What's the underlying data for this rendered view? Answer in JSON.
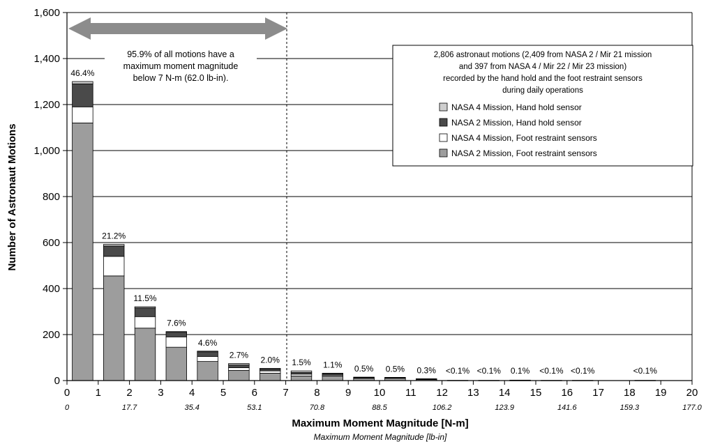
{
  "chart_data": {
    "type": "bar",
    "stacked": true,
    "ylabel": "Number of Astronaut Motions",
    "xlabel": "Maximum Moment Magnitude [N-m]",
    "xlabel_secondary": "Maximum Moment Magnitude [lb-in]",
    "ylim": [
      0,
      1600
    ],
    "yticks": [
      0,
      200,
      400,
      600,
      800,
      1000,
      1200,
      1400,
      1600
    ],
    "ytick_labels": [
      "0",
      "200",
      "400",
      "600",
      "800",
      "1,000",
      "1,200",
      "1,400",
      "1,600"
    ],
    "xlim": [
      0,
      20
    ],
    "xticks": [
      "0",
      "1",
      "2",
      "3",
      "4",
      "5",
      "6",
      "7",
      "8",
      "9",
      "10",
      "11",
      "12",
      "13",
      "14",
      "15",
      "16",
      "17",
      "18",
      "19",
      "20"
    ],
    "xticks_secondary": [
      {
        "x": 0,
        "label": "0"
      },
      {
        "x": 2,
        "label": "17.7"
      },
      {
        "x": 4,
        "label": "35.4"
      },
      {
        "x": 6,
        "label": "53.1"
      },
      {
        "x": 8,
        "label": "70.8"
      },
      {
        "x": 10,
        "label": "88.5"
      },
      {
        "x": 12,
        "label": "106.2"
      },
      {
        "x": 14,
        "label": "123.9"
      },
      {
        "x": 16,
        "label": "141.6"
      },
      {
        "x": 18,
        "label": "159.3"
      },
      {
        "x": 20,
        "label": "177.0"
      }
    ],
    "grid": "horizontal",
    "bins": [
      "0-1",
      "1-2",
      "2-3",
      "3-4",
      "4-5",
      "5-6",
      "6-7",
      "7-8",
      "8-9",
      "9-10",
      "10-11",
      "11-12",
      "12-13",
      "13-14",
      "14-15",
      "15-16",
      "16-17",
      "17-18",
      "18-19",
      "19-20"
    ],
    "series": [
      {
        "name": "NASA 2 Mission, Foot restraint sensors",
        "color": "#9d9d9d",
        "values": [
          1120,
          455,
          228,
          145,
          83,
          44,
          32,
          20,
          20,
          10,
          10,
          5,
          0,
          0,
          1,
          0,
          0,
          0,
          0,
          0
        ]
      },
      {
        "name": "NASA 4 Mission, Foot restraint sensors",
        "color": "#ffffff",
        "values": [
          70,
          85,
          50,
          45,
          22,
          12,
          10,
          8,
          4,
          2,
          2,
          1,
          1,
          0,
          1,
          0,
          0,
          0,
          0,
          0
        ]
      },
      {
        "name": "NASA 2 Mission, Hand hold sensor",
        "color": "#4a4a4a",
        "values": [
          100,
          45,
          38,
          20,
          20,
          12,
          8,
          7,
          6,
          1,
          1,
          1,
          0,
          1,
          0,
          1,
          1,
          0,
          1,
          0
        ]
      },
      {
        "name": "NASA 4 Mission, Hand hold sensor",
        "color": "#cfcfcf",
        "values": [
          10,
          7,
          5,
          3,
          3,
          6,
          3,
          7,
          2,
          2,
          1,
          1,
          0,
          0,
          0,
          0,
          0,
          0,
          0,
          0
        ]
      }
    ],
    "bar_labels": [
      {
        "x": 0,
        "label": "46.4%"
      },
      {
        "x": 1,
        "label": "21.2%"
      },
      {
        "x": 2,
        "label": "11.5%"
      },
      {
        "x": 3,
        "label": "7.6%"
      },
      {
        "x": 4,
        "label": "4.6%"
      },
      {
        "x": 5,
        "label": "2.7%"
      },
      {
        "x": 6,
        "label": "2.0%"
      },
      {
        "x": 7,
        "label": "1.5%"
      },
      {
        "x": 8,
        "label": "1.1%"
      },
      {
        "x": 9,
        "label": "0.5%"
      },
      {
        "x": 10,
        "label": "0.5%"
      },
      {
        "x": 11,
        "label": "0.3%"
      },
      {
        "x": 12,
        "label": "<0.1%"
      },
      {
        "x": 13,
        "label": "<0.1%"
      },
      {
        "x": 14,
        "label": "0.1%"
      },
      {
        "x": 15,
        "label": "<0.1%"
      },
      {
        "x": 16,
        "label": "<0.1%"
      },
      {
        "x": 18,
        "label": "<0.1%"
      }
    ],
    "threshold_x": 7,
    "annotation": [
      "95.9% of all motions have a",
      "maximum moment magnitude",
      "below 7 N-m (62.0 lb-in)."
    ],
    "legend_header": [
      "2,806 astronaut motions (2,409 from NASA 2 / Mir 21 mission",
      "and 397 from NASA 4 / Mir 22 / Mir 23 mission)",
      "recorded by the hand hold and the foot restraint sensors",
      "during daily operations"
    ],
    "legend_order": [
      3,
      2,
      1,
      0
    ],
    "legend_placement": "top-right"
  }
}
